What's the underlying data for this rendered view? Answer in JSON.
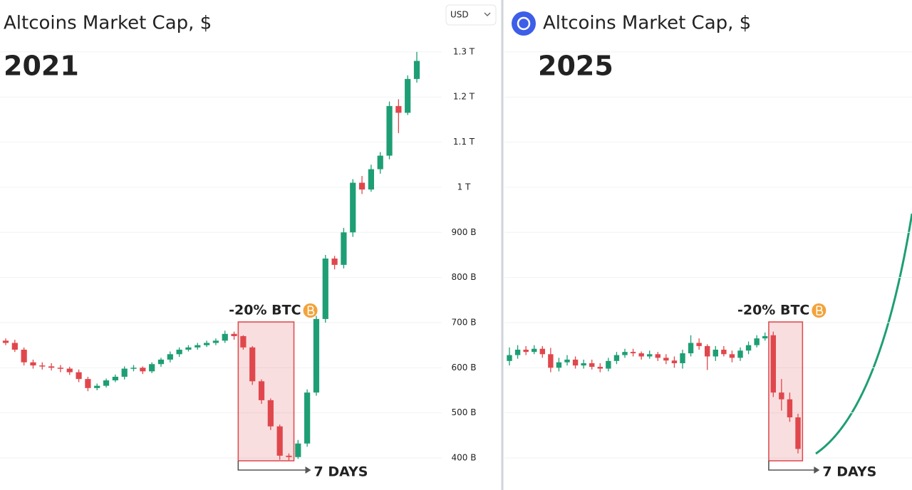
{
  "currency": "USD",
  "chart_data": [
    {
      "type": "candlestick",
      "title": "Altcoins Market Cap, $",
      "label": "2021",
      "annotations": {
        "drop": "-20% BTC",
        "duration": "7 DAYS"
      },
      "up_color": "#1e9e74",
      "down_color": "#e0474c",
      "grid": true,
      "ylim": [
        329,
        1415
      ],
      "yticks": [
        {
          "value": 1300,
          "label": "1.3 T"
        },
        {
          "value": 1200,
          "label": "1.2 T"
        },
        {
          "value": 1100,
          "label": "1.1 T"
        },
        {
          "value": 1000,
          "label": "1 T"
        },
        {
          "value": 900,
          "label": "900 B"
        },
        {
          "value": 800,
          "label": "800 B"
        },
        {
          "value": 700,
          "label": "700 B"
        },
        {
          "value": 600,
          "label": "600 B"
        },
        {
          "value": 500,
          "label": "500 B"
        },
        {
          "value": 400,
          "label": "400 B"
        }
      ],
      "open": [
        660,
        655,
        640,
        612,
        605,
        603,
        600,
        598,
        590,
        575,
        555,
        560,
        572,
        580,
        598,
        600,
        592,
        608,
        618,
        630,
        640,
        645,
        650,
        655,
        660,
        675,
        670,
        645,
        570,
        528,
        470,
        405,
        402,
        432,
        545,
        708,
        842,
        828,
        900,
        1010,
        995,
        1040,
        1070,
        1180,
        1165,
        1240
      ],
      "high": [
        665,
        662,
        645,
        618,
        612,
        610,
        606,
        602,
        596,
        580,
        565,
        576,
        585,
        603,
        606,
        603,
        612,
        622,
        636,
        645,
        650,
        655,
        660,
        665,
        682,
        680,
        672,
        648,
        574,
        532,
        474,
        410,
        440,
        552,
        715,
        850,
        848,
        910,
        1018,
        1025,
        1050,
        1078,
        1190,
        1195,
        1248,
        1300
      ],
      "low": [
        650,
        635,
        605,
        598,
        596,
        594,
        590,
        584,
        568,
        548,
        550,
        556,
        568,
        574,
        592,
        586,
        588,
        602,
        612,
        624,
        636,
        640,
        646,
        650,
        655,
        662,
        640,
        562,
        520,
        462,
        396,
        394,
        398,
        425,
        538,
        700,
        818,
        820,
        890,
        985,
        990,
        1030,
        1062,
        1120,
        1160,
        1232
      ],
      "close": [
        655,
        640,
        612,
        605,
        603,
        600,
        598,
        590,
        575,
        555,
        560,
        572,
        580,
        598,
        600,
        592,
        608,
        618,
        630,
        640,
        645,
        650,
        655,
        660,
        675,
        670,
        645,
        570,
        528,
        470,
        405,
        402,
        432,
        545,
        708,
        842,
        828,
        900,
        1010,
        995,
        1040,
        1070,
        1180,
        1165,
        1240,
        1280
      ]
    },
    {
      "type": "candlestick",
      "title": "Altcoins Market Cap, $",
      "label": "2025",
      "annotations": {
        "drop": "-20% BTC",
        "duration": "7 DAYS"
      },
      "up_color": "#1e9e74",
      "down_color": "#e0474c",
      "grid": true,
      "ylim": [
        329,
        1415
      ],
      "open": [
        615,
        628,
        640,
        635,
        642,
        630,
        600,
        612,
        618,
        605,
        610,
        602,
        598,
        615,
        628,
        635,
        632,
        625,
        630,
        622,
        616,
        610,
        632,
        655,
        648,
        625,
        640,
        630,
        622,
        638,
        650,
        665,
        672,
        545,
        530,
        490
      ],
      "high": [
        645,
        650,
        648,
        650,
        648,
        644,
        622,
        628,
        625,
        618,
        618,
        610,
        622,
        635,
        642,
        642,
        636,
        638,
        635,
        630,
        625,
        640,
        672,
        665,
        652,
        648,
        648,
        638,
        645,
        658,
        672,
        678,
        680,
        575,
        545,
        498
      ],
      "low": [
        605,
        620,
        628,
        630,
        622,
        590,
        592,
        605,
        598,
        598,
        596,
        590,
        592,
        608,
        622,
        625,
        618,
        620,
        615,
        608,
        600,
        598,
        625,
        640,
        595,
        615,
        625,
        612,
        615,
        630,
        645,
        660,
        535,
        505,
        480,
        410
      ],
      "close": [
        628,
        640,
        635,
        642,
        630,
        600,
        612,
        618,
        605,
        610,
        602,
        598,
        615,
        628,
        635,
        632,
        625,
        630,
        622,
        616,
        610,
        632,
        655,
        648,
        625,
        640,
        630,
        622,
        638,
        650,
        665,
        670,
        545,
        530,
        490,
        420
      ]
    }
  ]
}
